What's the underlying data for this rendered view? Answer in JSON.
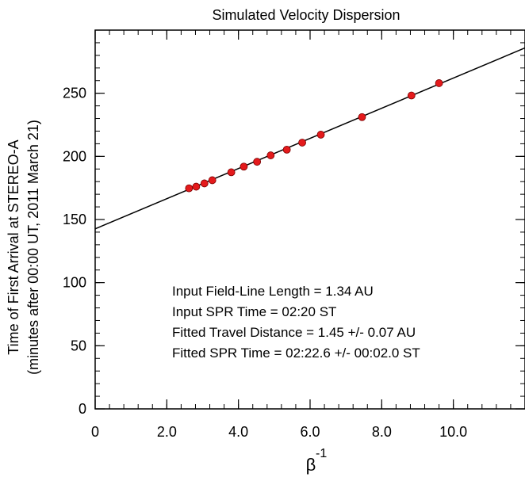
{
  "chart_data": {
    "type": "scatter",
    "title": "Simulated Velocity Dispersion",
    "xlabel_base": "β",
    "xlabel_sup": "-1",
    "ylabel_line1": "Time of First Arrival at STEREO-A",
    "ylabel_line2": "(minutes after 00:00 UT, 2011 March 21)",
    "xlim": [
      0,
      12
    ],
    "ylim": [
      0,
      300
    ],
    "x_ticks": [
      {
        "value": 0,
        "label": "0"
      },
      {
        "value": 2,
        "label": "2.0"
      },
      {
        "value": 4,
        "label": "4.0"
      },
      {
        "value": 6,
        "label": "6.0"
      },
      {
        "value": 8,
        "label": "8.0"
      },
      {
        "value": 10,
        "label": "10.0"
      }
    ],
    "y_ticks": [
      {
        "value": 0,
        "label": "0"
      },
      {
        "value": 50,
        "label": "50"
      },
      {
        "value": 100,
        "label": "100"
      },
      {
        "value": 150,
        "label": "150"
      },
      {
        "value": 200,
        "label": "200"
      },
      {
        "value": 250,
        "label": "250"
      }
    ],
    "x_minor_step": 0.4,
    "y_minor_step": 10,
    "points": [
      {
        "x": 2.62,
        "y": 174.7
      },
      {
        "x": 2.82,
        "y": 176.0
      },
      {
        "x": 3.05,
        "y": 178.6
      },
      {
        "x": 3.27,
        "y": 181.1
      },
      {
        "x": 3.8,
        "y": 187.4
      },
      {
        "x": 4.15,
        "y": 191.9
      },
      {
        "x": 4.52,
        "y": 195.7
      },
      {
        "x": 4.9,
        "y": 200.8
      },
      {
        "x": 5.35,
        "y": 205.3
      },
      {
        "x": 5.78,
        "y": 210.9
      },
      {
        "x": 6.3,
        "y": 217.2
      },
      {
        "x": 7.45,
        "y": 231.1
      },
      {
        "x": 8.83,
        "y": 248.2
      },
      {
        "x": 9.6,
        "y": 258.0
      }
    ],
    "fit_line": {
      "x": [
        0,
        12
      ],
      "y": [
        142.6,
        285.9
      ]
    },
    "point_color": "#e41a1c",
    "line_color": "#000000",
    "grid": false,
    "annotations": [
      "Input Field-Line Length = 1.34 AU",
      "Input SPR Time = 02:20 ST",
      "Fitted Travel Distance = 1.45 +/- 0.07 AU",
      "Fitted SPR Time = 02:22.6 +/- 00:02.0 ST"
    ]
  }
}
